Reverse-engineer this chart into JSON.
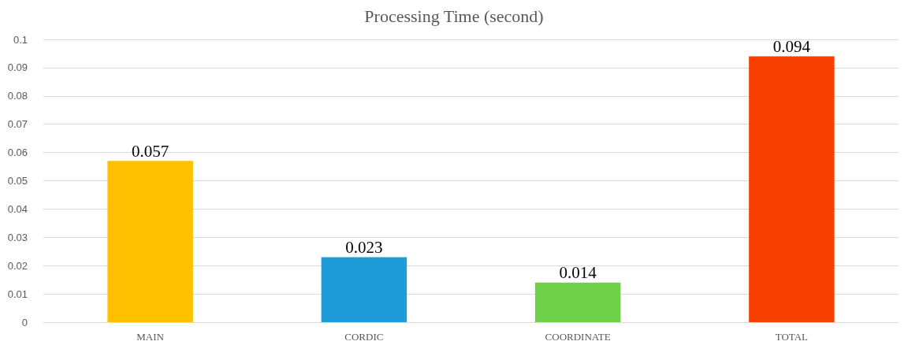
{
  "chart_data": {
    "type": "bar",
    "title": "Processing Time (second)",
    "categories": [
      "MAIN",
      "CORDIC",
      "COORDINATE",
      "TOTAL"
    ],
    "values": [
      0.057,
      0.023,
      0.014,
      0.094
    ],
    "colors": [
      "#ffc000",
      "#1f9bd7",
      "#6fd04a",
      "#f84000"
    ],
    "ylim": [
      0,
      0.1
    ],
    "yticks": [
      0,
      0.01,
      0.02,
      0.03,
      0.04,
      0.05,
      0.06,
      0.07,
      0.08,
      0.09,
      0.1
    ],
    "grid": "y",
    "data_labels": true
  }
}
